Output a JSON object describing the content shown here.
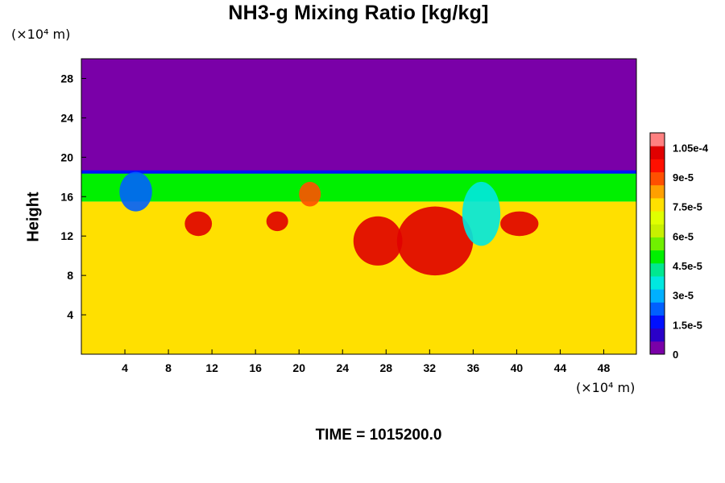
{
  "chart_data": {
    "type": "heatmap",
    "title": "NH3-g Mixing Ratio [kg/kg]",
    "ylabel": "Height",
    "x_unit": "(×10⁴ m)",
    "y_unit": "(×10⁴ m)",
    "time_label": "TIME = 1015200.0",
    "xlim": [
      0,
      51
    ],
    "ylim": [
      0,
      30
    ],
    "x_ticks": [
      4,
      8,
      12,
      16,
      20,
      24,
      28,
      32,
      36,
      40,
      44,
      48
    ],
    "y_ticks": [
      4,
      8,
      12,
      16,
      20,
      24,
      28
    ],
    "colorbar": {
      "min": 0,
      "max": 0.0001125,
      "tick_values": [
        0,
        1.5e-05,
        3e-05,
        4.5e-05,
        6e-05,
        7.5e-05,
        9e-05,
        0.000105
      ],
      "tick_labels": [
        "0",
        "1.5e-5",
        "3e-5",
        "4.5e-5",
        "6e-5",
        "7.5e-5",
        "9e-5",
        "1.05e-4"
      ],
      "colors": [
        "#7a00a8",
        "#2a00c8",
        "#0010ff",
        "#0060ff",
        "#00b0ff",
        "#00e8e0",
        "#00e890",
        "#00f000",
        "#70f000",
        "#c8f000",
        "#e0ff00",
        "#ffe000",
        "#ffa000",
        "#ff5000",
        "#ff1000",
        "#e00000",
        "#ff8080"
      ]
    },
    "field_summary": {
      "upper_layer": {
        "y_range": [
          18.5,
          30
        ],
        "value": 0
      },
      "lower_layer": {
        "y_range": [
          0,
          15.5
        ],
        "value": 7.8e-05
      },
      "interface_band": {
        "y_range": [
          15.5,
          18.5
        ],
        "value_range": [
          4.5e-05,
          6e-05
        ]
      },
      "regions": [
        {
          "x": [
            3.5,
            6.5
          ],
          "y": [
            14.5,
            18.5
          ],
          "value": 2.5e-05
        },
        {
          "x": [
            9.5,
            12
          ],
          "y": [
            12,
            14.5
          ],
          "value": 0.000105
        },
        {
          "x": [
            17,
            19
          ],
          "y": [
            12.5,
            14.5
          ],
          "value": 0.0001
        },
        {
          "x": [
            20,
            22
          ],
          "y": [
            15,
            17.5
          ],
          "value": 9e-05
        },
        {
          "x": [
            25,
            29.5
          ],
          "y": [
            9,
            14
          ],
          "value": 0.0001
        },
        {
          "x": [
            29,
            36
          ],
          "y": [
            8,
            15
          ],
          "value": 0.000102
        },
        {
          "x": [
            35,
            38.5
          ],
          "y": [
            11,
            17.5
          ],
          "value": 3.5e-05
        },
        {
          "x": [
            38.5,
            42
          ],
          "y": [
            12,
            14.5
          ],
          "value": 0.0001
        }
      ]
    }
  }
}
